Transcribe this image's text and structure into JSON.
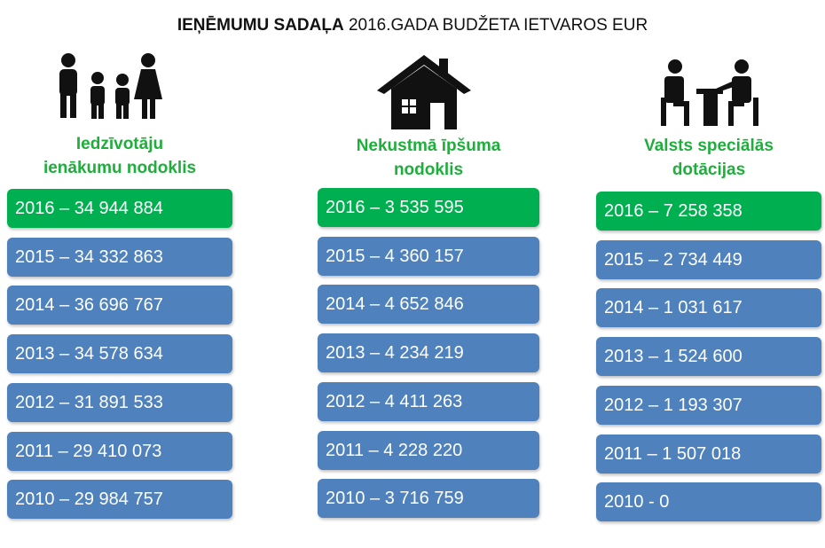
{
  "title": {
    "bold": "IEŅĒMUMU SADAĻA",
    "rest": "2016.GADA BUDŽETA IETVAROS EUR"
  },
  "columns": [
    {
      "heading": [
        "Iedzīvotāju",
        "ienākumu nodoklis"
      ],
      "items": [
        "2016 – 34 944 884",
        "2015 – 34 332 863",
        "2014 – 36 696 767",
        "2013 – 34 578 634",
        "2012 – 31 891 533",
        "2011 – 29 410 073",
        "2010 – 29 984 757"
      ]
    },
    {
      "heading": [
        "Nekustmā īpšuma",
        "nodoklis"
      ],
      "items": [
        "2016 – 3 535 595",
        "2015 – 4 360 157",
        "2014 – 4 652 846",
        "2013 – 4 234 219",
        "2012 – 4 411 263",
        "2011 – 4 228 220",
        "2010 – 3 716 759"
      ]
    },
    {
      "heading": [
        "Valsts speciālās",
        "dotācijas"
      ],
      "items": [
        "2016 – 7 258 358",
        "2015 – 2 734 449",
        "2014 – 1 031 617",
        "2013 – 1 524 600",
        "2012 – 1 193 307",
        "2011 – 1 507 018",
        "2010 - 0"
      ]
    }
  ]
}
